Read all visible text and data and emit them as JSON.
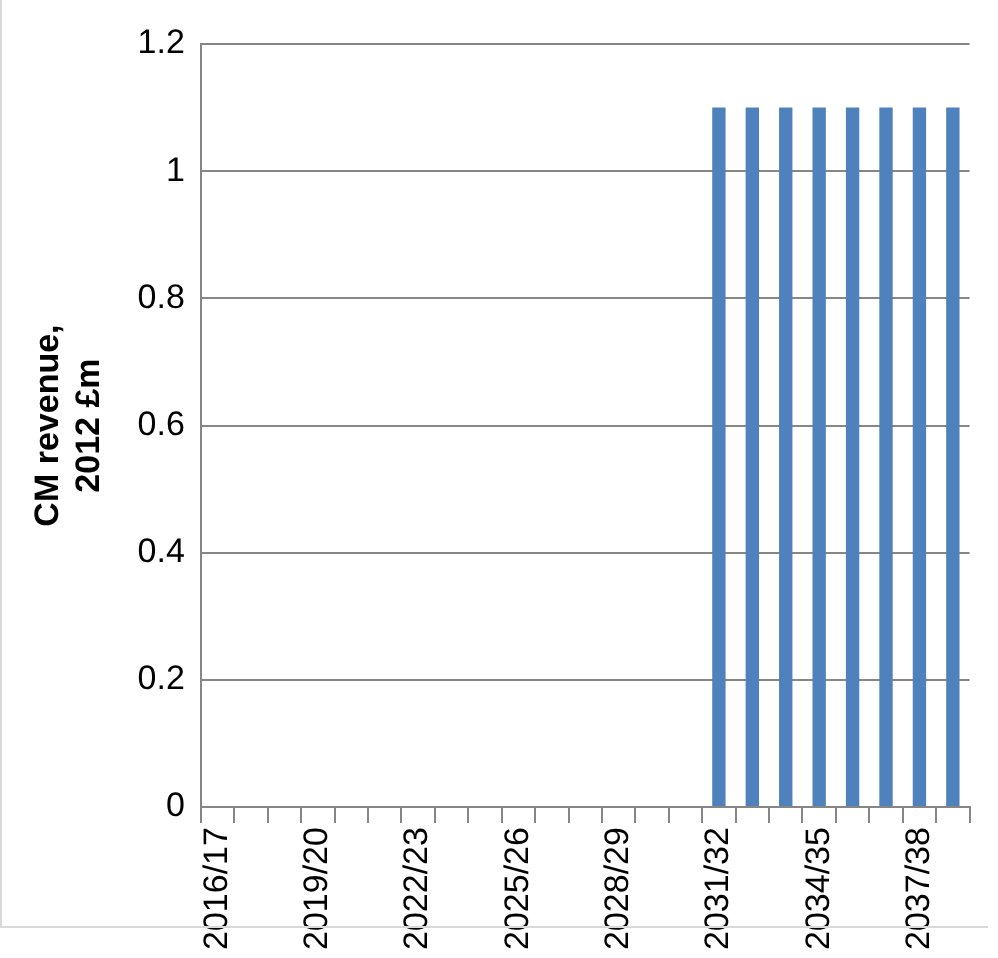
{
  "chart_data": {
    "type": "bar",
    "ylabel": "CM revenue, 2012 £m",
    "categories": [
      "2016/17",
      null,
      null,
      "2019/20",
      null,
      null,
      "2022/23",
      null,
      null,
      "2025/26",
      null,
      null,
      "2028/29",
      null,
      null,
      "2031/32",
      null,
      null,
      "2034/35",
      null,
      null,
      "2037/38",
      null
    ],
    "values": [
      0,
      0,
      0,
      0,
      0,
      0,
      0,
      0,
      0,
      0,
      0,
      0,
      0,
      0,
      0,
      1.1,
      1.1,
      1.1,
      1.1,
      1.1,
      1.1,
      1.1,
      1.1
    ],
    "color": "#4f81bd",
    "ylim": [
      0,
      1.2
    ],
    "yticks": [
      0,
      0.2,
      0.4,
      0.6,
      0.8,
      1,
      1.2
    ],
    "grid": "y",
    "legend": false
  }
}
